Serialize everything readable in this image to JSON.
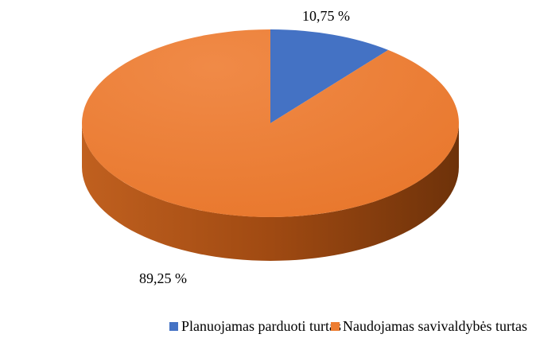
{
  "chart_data": {
    "type": "pie",
    "categories": [
      "Planuojamas parduoti turtas",
      "Naudojamas savivaldybės turtas"
    ],
    "values": [
      10.75,
      89.25
    ],
    "value_labels": [
      "10,75 %",
      "89,25 %"
    ],
    "colors": [
      "#4472c4",
      "#ed7d31"
    ]
  }
}
